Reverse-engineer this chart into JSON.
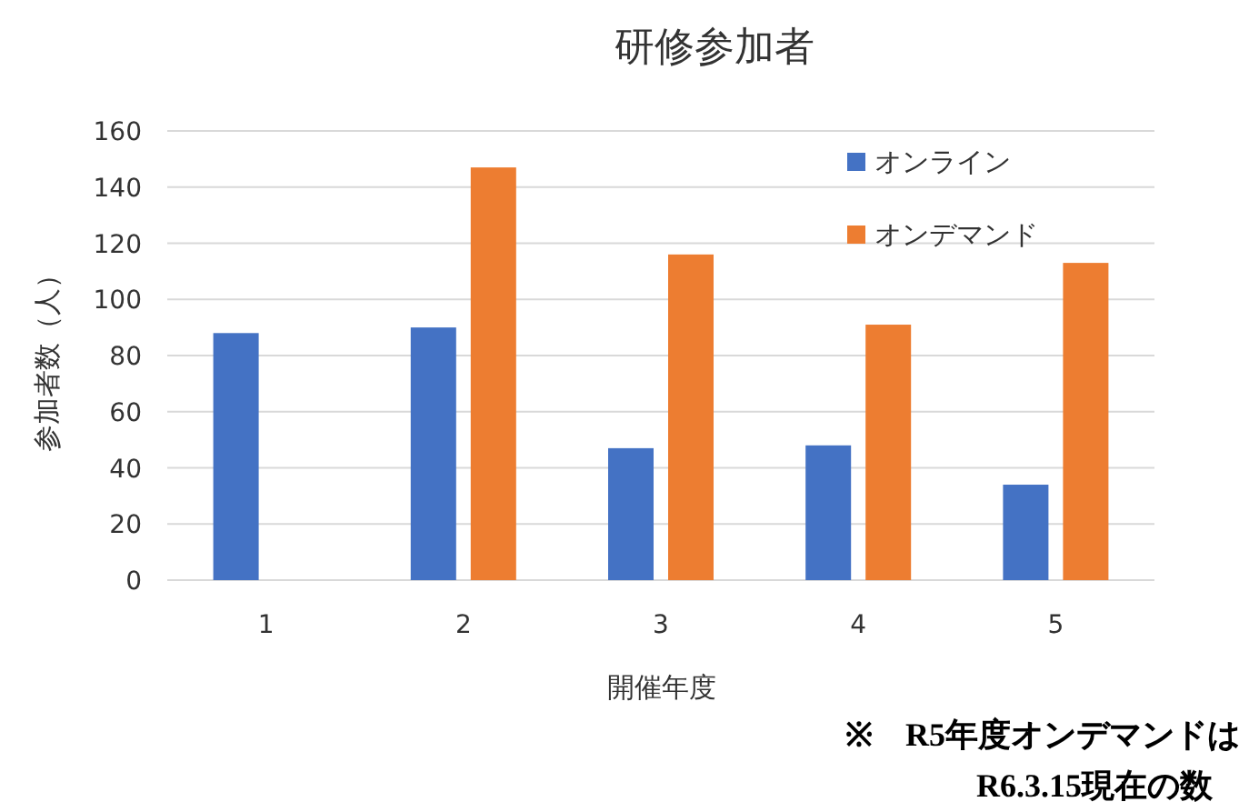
{
  "chart_data": {
    "type": "bar",
    "title": "研修参加者",
    "xlabel": "開催年度",
    "ylabel": "参加者数（人）",
    "categories": [
      "1",
      "2",
      "3",
      "4",
      "5"
    ],
    "series": [
      {
        "name": "オンライン",
        "color": "#4472c4",
        "values": [
          88,
          90,
          47,
          48,
          34
        ]
      },
      {
        "name": "オンデマンド",
        "color": "#ed7d31",
        "values": [
          null,
          147,
          116,
          91,
          113
        ]
      }
    ],
    "ylim": [
      0,
      160
    ],
    "yticks": [
      0,
      20,
      40,
      60,
      80,
      100,
      120,
      140,
      160
    ],
    "grid": "y",
    "legend": "top right",
    "annotations": [
      "※　R5年度オンデマンドは",
      "R6.3.15現在の数"
    ]
  }
}
